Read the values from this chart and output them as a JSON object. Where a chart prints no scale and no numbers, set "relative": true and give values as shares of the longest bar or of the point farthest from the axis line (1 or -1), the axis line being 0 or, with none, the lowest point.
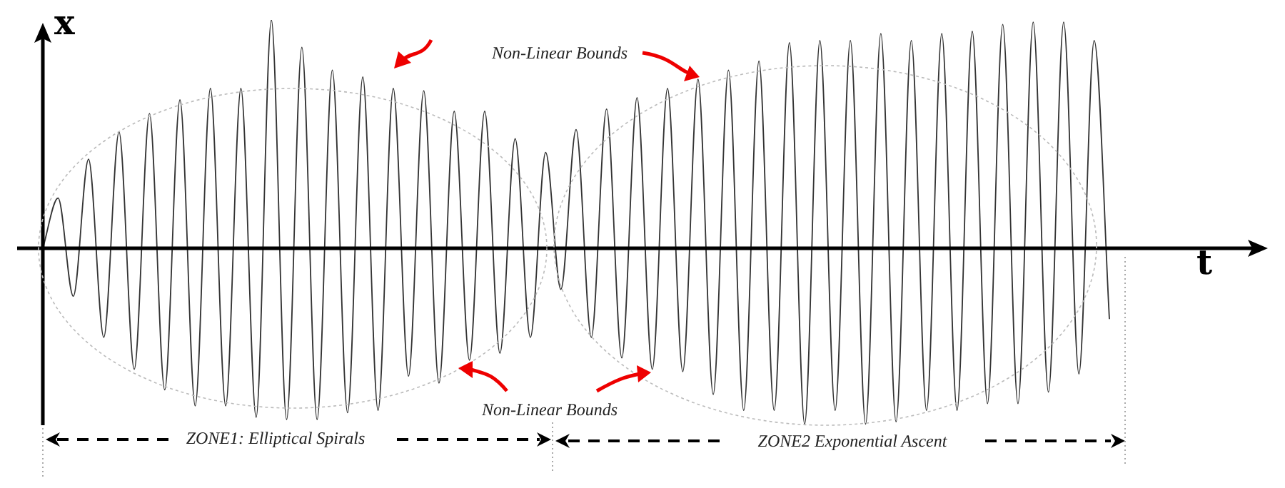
{
  "chart_data": {
    "type": "line",
    "relative": true,
    "xlabel": "t",
    "ylabel": "x",
    "color": "#333333",
    "legend": false,
    "marker": "none",
    "annotations": [
      "Non-Linear Bounds",
      "Non-Linear Bounds",
      "ZONE1: Elliptical Spirals",
      "ZONE2 Exponential Ascent"
    ],
    "categories": [
      null,
      null,
      null,
      null,
      null,
      null,
      null,
      null,
      null,
      null,
      null,
      null,
      null,
      null,
      null,
      null,
      null,
      null,
      null,
      null,
      null,
      null,
      null,
      null,
      null,
      null,
      null,
      null,
      null,
      null,
      null,
      null,
      null,
      null,
      null,
      null,
      null,
      null,
      null,
      null,
      null,
      null,
      null,
      null,
      null,
      null,
      null,
      null,
      null,
      null,
      null,
      null,
      null,
      null,
      null,
      null,
      null,
      null,
      null,
      null,
      null,
      null,
      null,
      null,
      null,
      null,
      null,
      null,
      null,
      null,
      null
    ],
    "values": [
      0,
      0.22,
      -0.21,
      0.39,
      -0.39,
      0.51,
      -0.53,
      0.59,
      -0.62,
      0.65,
      -0.69,
      0.7,
      -0.69,
      0.7,
      -0.74,
      1,
      -0.75,
      0.88,
      -0.75,
      0.78,
      -0.72,
      0.75,
      -0.71,
      0.7,
      -0.56,
      0.69,
      -0.59,
      0.6,
      -0.49,
      0.6,
      -0.46,
      0.48,
      -0.39,
      0.42,
      -0.18,
      0.52,
      -0.39,
      0.61,
      -0.48,
      0.66,
      -0.53,
      0.7,
      -0.54,
      0.74,
      -0.64,
      0.78,
      -0.71,
      0.82,
      -0.71,
      0.9,
      -0.77,
      0.91,
      -0.71,
      0.91,
      -0.77,
      0.94,
      -0.76,
      0.91,
      -0.71,
      0.94,
      -0.71,
      0.95,
      -0.68,
      0.98,
      -0.68,
      0.99,
      -0.63,
      0.99,
      -0.55,
      0.91,
      -0.31
    ]
  }
}
